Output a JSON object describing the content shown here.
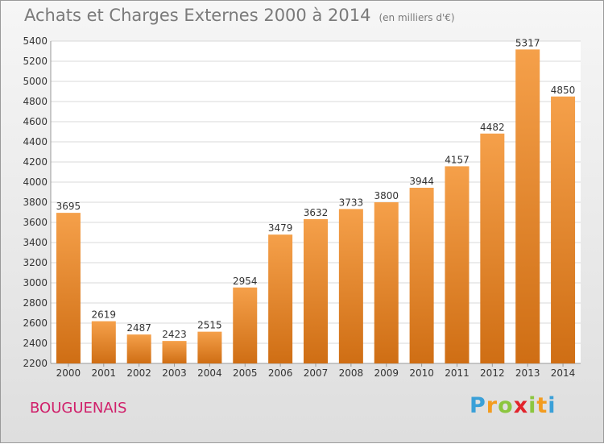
{
  "title": "Achats et Charges Externes 2000 à 2014",
  "subtitle": "(en milliers d'€)",
  "city": "BOUGUENAIS",
  "logo": {
    "letters": [
      "P",
      "r",
      "o",
      "x",
      "i",
      "t",
      "i"
    ],
    "colors": [
      "#3aa0d8",
      "#f39c1f",
      "#8cc63f",
      "#e2242c",
      "#8cc63f",
      "#f39c1f",
      "#3aa0d8"
    ]
  },
  "colors": {
    "bar": "#ee8a2a",
    "bar_dark": "#d06f14",
    "grid": "#d8d8d8",
    "axis_text": "#333333"
  },
  "chart_data": {
    "type": "bar",
    "title": "Achats et Charges Externes 2000 à 2014",
    "categories": [
      "2000",
      "2001",
      "2002",
      "2003",
      "2004",
      "2005",
      "2006",
      "2007",
      "2008",
      "2009",
      "2010",
      "2011",
      "2012",
      "2013",
      "2014"
    ],
    "values": [
      3695,
      2619,
      2487,
      2423,
      2515,
      2954,
      3479,
      3632,
      3733,
      3800,
      3944,
      4157,
      4482,
      5317,
      4850
    ],
    "ylim": [
      2200,
      5400
    ],
    "yticks": [
      2200,
      2400,
      2600,
      2800,
      3000,
      3200,
      3400,
      3600,
      3800,
      4000,
      4200,
      4400,
      4600,
      4800,
      5000,
      5200,
      5400
    ],
    "grid": true
  }
}
